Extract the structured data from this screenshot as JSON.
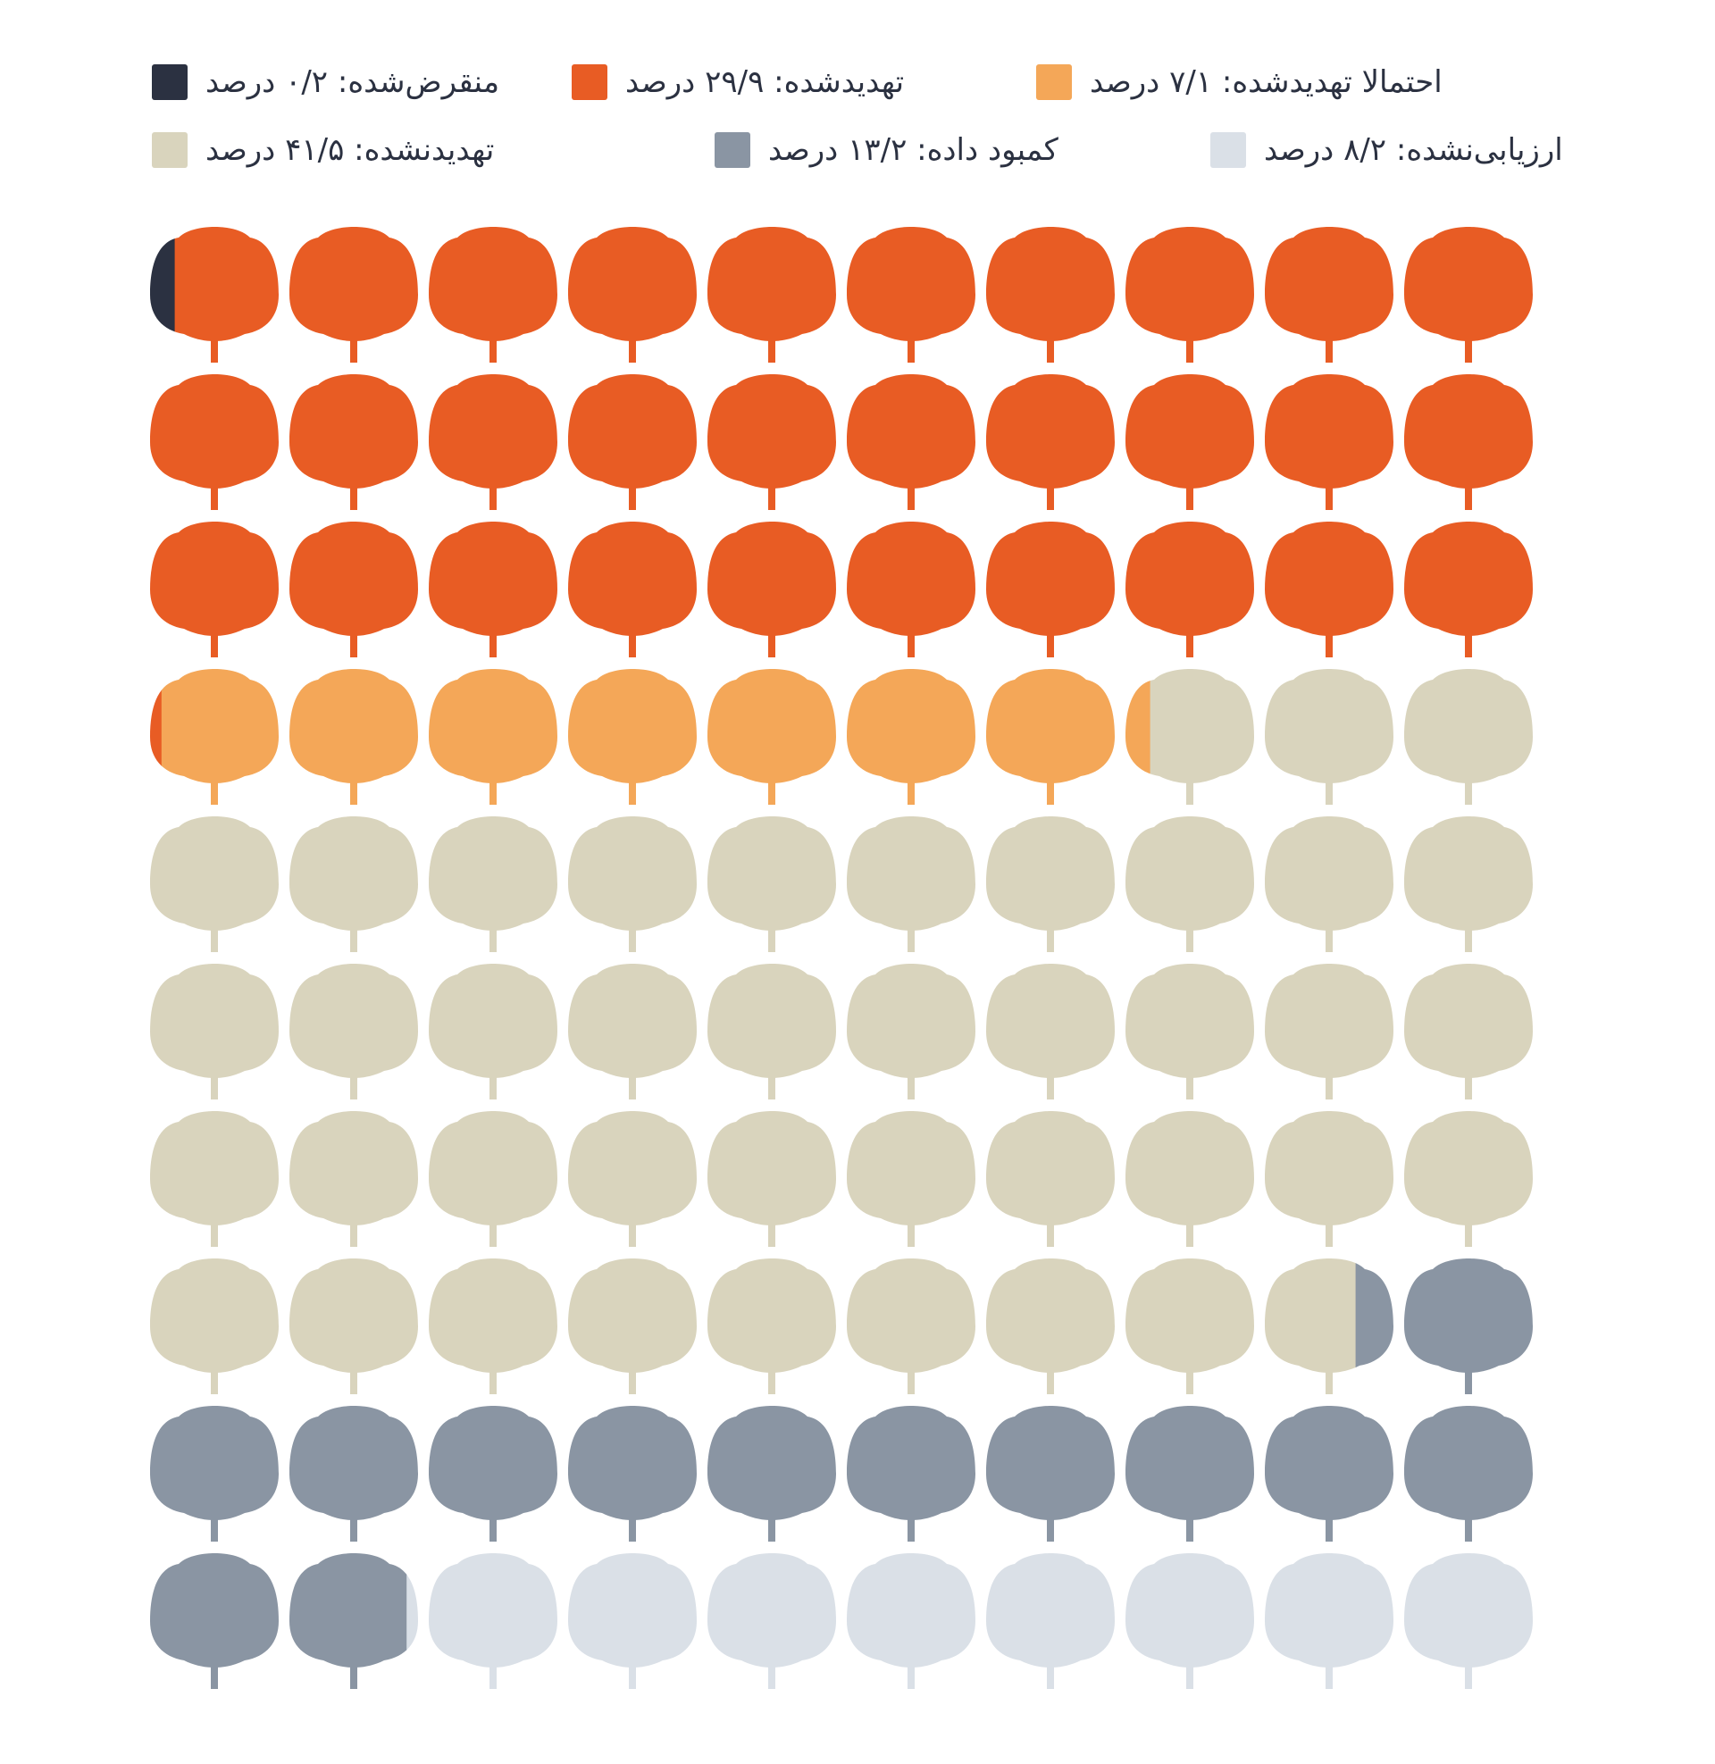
{
  "chart_data": {
    "type": "pictogram",
    "units_total": 100,
    "categories": [
      {
        "key": "extinct",
        "label": "منقرض‌شده: ۰/۲ درصد",
        "value": 0.2,
        "color": "#2b3141"
      },
      {
        "key": "threatened",
        "label": "تهدیدشده: ۲۹/۹ درصد",
        "value": 29.9,
        "color": "#e85c24"
      },
      {
        "key": "near_threatened",
        "label": "احتمالا تهدیدشده: ۷/۱ درصد",
        "value": 7.1,
        "color": "#f4a758"
      },
      {
        "key": "not_threatened",
        "label": "تهدیدنشده: ۴۱/۵ درصد",
        "value": 41.5,
        "color": "#d9d4bd"
      },
      {
        "key": "data_deficient",
        "label": "کمبود داده: ۱۳/۲ درصد",
        "value": 13.2,
        "color": "#8a95a3"
      },
      {
        "key": "not_evaluated",
        "label": "ارزیابی‌نشده: ۸/۲ درصد",
        "value": 8.2,
        "color": "#dae0e7"
      }
    ]
  }
}
